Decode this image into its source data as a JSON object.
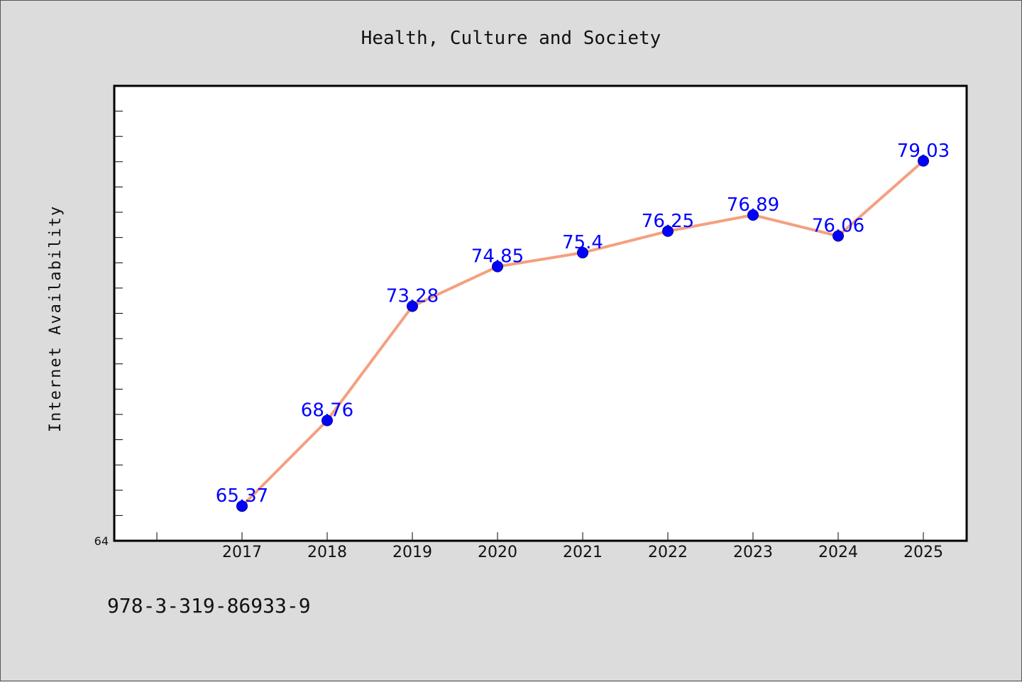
{
  "chart_data": {
    "type": "line",
    "title": "Health, Culture and Society",
    "xlabel": "",
    "ylabel": "Internet Availability",
    "categories": [
      "2017",
      "2018",
      "2019",
      "2020",
      "2021",
      "2022",
      "2023",
      "2024",
      "2025"
    ],
    "values": [
      65.37,
      68.76,
      73.28,
      74.85,
      75.4,
      76.25,
      76.89,
      76.06,
      79.03
    ],
    "data_labels": [
      "65.37",
      "68.76",
      "73.28",
      "74.85",
      "75.4",
      "76.25",
      "76.89",
      "76.06",
      "79.03"
    ],
    "y_tick_labels": [
      "64"
    ],
    "ylim": [
      64,
      82
    ],
    "grid": false,
    "legend": "none",
    "colors": {
      "line": "#f4a07f",
      "marker": "#0000ff",
      "data_label": "#0000ff",
      "plot_background": "#ffffff",
      "figure_background": "#dcdcdc"
    }
  },
  "annotation": "978-3-319-86933-9"
}
